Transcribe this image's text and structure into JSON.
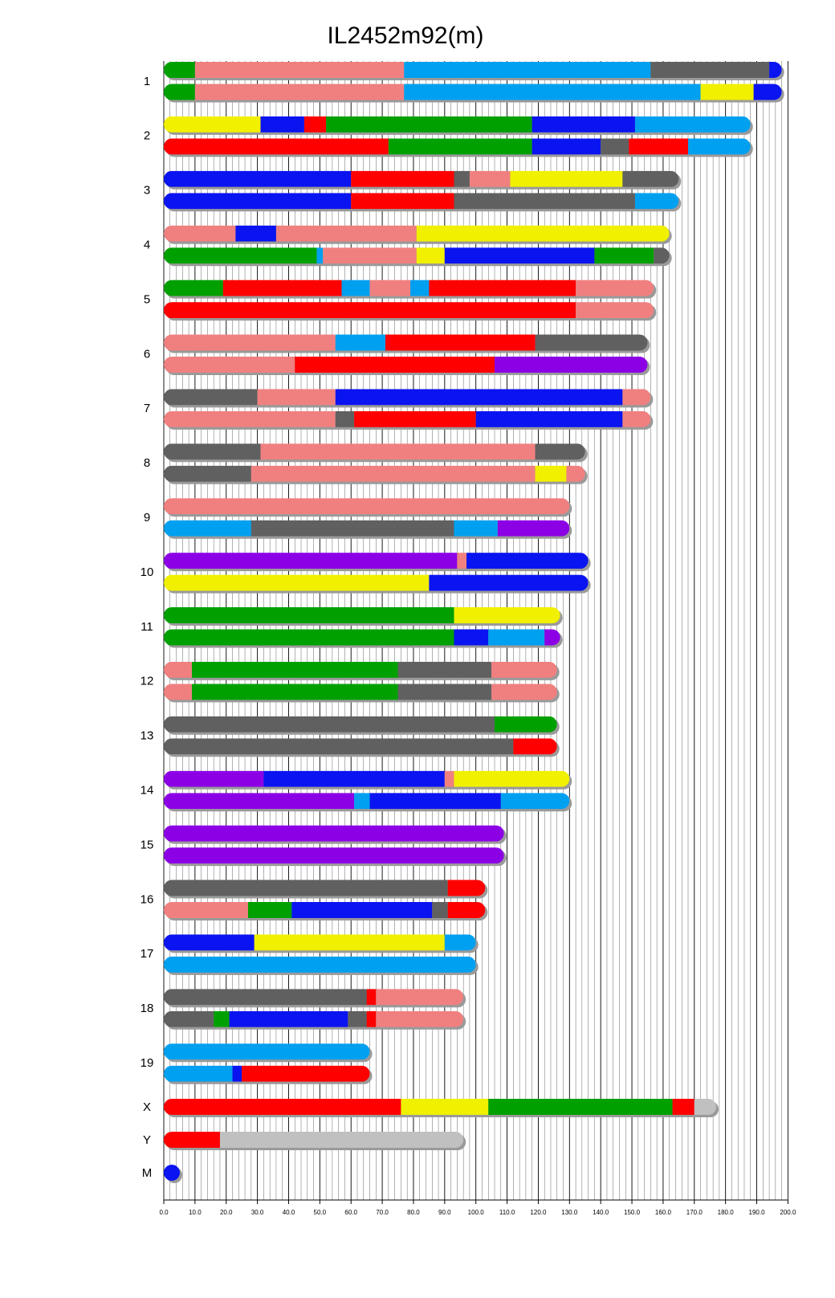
{
  "title": "IL2452m92(m)",
  "colors": {
    "red": "#ff0000",
    "green": "#00a000",
    "blue": "#0a14f0",
    "pink": "#f08080",
    "cyan": "#00a0f0",
    "gray": "#606060",
    "yellow": "#f0f000",
    "purple": "#8c00e6",
    "lightgray": "#c0c0c0"
  },
  "chart_data": {
    "type": "bar",
    "title": "IL2452m92(m)",
    "xlim": [
      0,
      200
    ],
    "x_ticks": [
      "0.0",
      "10.0",
      "20.0",
      "30.0",
      "40.0",
      "50.0",
      "60.0",
      "70.0",
      "80.0",
      "90.0",
      "100.0",
      "110.0",
      "120.0",
      "130.0",
      "140.0",
      "150.0",
      "160.0",
      "170.0",
      "180.0",
      "190.0",
      "200.0"
    ],
    "chromosomes": [
      {
        "name": "1",
        "strands": [
          [
            [
              0,
              10,
              "green"
            ],
            [
              10,
              77,
              "pink"
            ],
            [
              77,
              156,
              "cyan"
            ],
            [
              156,
              194,
              "gray"
            ],
            [
              194,
              198,
              "blue"
            ]
          ],
          [
            [
              0,
              10,
              "green"
            ],
            [
              10,
              77,
              "pink"
            ],
            [
              77,
              172,
              "cyan"
            ],
            [
              172,
              189,
              "yellow"
            ],
            [
              189,
              198,
              "blue"
            ]
          ]
        ]
      },
      {
        "name": "2",
        "strands": [
          [
            [
              0,
              31,
              "yellow"
            ],
            [
              31,
              45,
              "blue"
            ],
            [
              45,
              52,
              "red"
            ],
            [
              52,
              118,
              "green"
            ],
            [
              118,
              151,
              "blue"
            ],
            [
              151,
              188,
              "cyan"
            ]
          ],
          [
            [
              0,
              72,
              "red"
            ],
            [
              72,
              118,
              "green"
            ],
            [
              118,
              140,
              "blue"
            ],
            [
              140,
              149,
              "gray"
            ],
            [
              149,
              168,
              "red"
            ],
            [
              168,
              188,
              "cyan"
            ]
          ]
        ]
      },
      {
        "name": "3",
        "strands": [
          [
            [
              0,
              60,
              "blue"
            ],
            [
              60,
              93,
              "red"
            ],
            [
              93,
              98,
              "gray"
            ],
            [
              98,
              111,
              "pink"
            ],
            [
              111,
              147,
              "yellow"
            ],
            [
              147,
              165,
              "gray"
            ]
          ],
          [
            [
              0,
              60,
              "blue"
            ],
            [
              60,
              93,
              "red"
            ],
            [
              93,
              151,
              "gray"
            ],
            [
              151,
              165,
              "cyan"
            ]
          ]
        ]
      },
      {
        "name": "4",
        "strands": [
          [
            [
              0,
              23,
              "pink"
            ],
            [
              23,
              36,
              "blue"
            ],
            [
              36,
              81,
              "pink"
            ],
            [
              81,
              162,
              "yellow"
            ]
          ],
          [
            [
              0,
              49,
              "green"
            ],
            [
              49,
              51,
              "cyan"
            ],
            [
              51,
              81,
              "pink"
            ],
            [
              81,
              90,
              "yellow"
            ],
            [
              90,
              138,
              "blue"
            ],
            [
              138,
              157,
              "green"
            ],
            [
              157,
              162,
              "gray"
            ]
          ]
        ]
      },
      {
        "name": "5",
        "strands": [
          [
            [
              0,
              19,
              "green"
            ],
            [
              19,
              57,
              "red"
            ],
            [
              57,
              66,
              "cyan"
            ],
            [
              66,
              79,
              "pink"
            ],
            [
              79,
              85,
              "cyan"
            ],
            [
              85,
              132,
              "red"
            ],
            [
              132,
              157,
              "pink"
            ]
          ],
          [
            [
              0,
              132,
              "red"
            ],
            [
              132,
              157,
              "pink"
            ]
          ]
        ]
      },
      {
        "name": "6",
        "strands": [
          [
            [
              0,
              55,
              "pink"
            ],
            [
              55,
              71,
              "cyan"
            ],
            [
              71,
              119,
              "red"
            ],
            [
              119,
              155,
              "gray"
            ]
          ],
          [
            [
              0,
              42,
              "pink"
            ],
            [
              42,
              106,
              "red"
            ],
            [
              106,
              155,
              "purple"
            ]
          ]
        ]
      },
      {
        "name": "7",
        "strands": [
          [
            [
              0,
              30,
              "gray"
            ],
            [
              30,
              55,
              "pink"
            ],
            [
              55,
              147,
              "blue"
            ],
            [
              147,
              156,
              "pink"
            ]
          ],
          [
            [
              0,
              55,
              "pink"
            ],
            [
              55,
              61,
              "gray"
            ],
            [
              61,
              100,
              "red"
            ],
            [
              100,
              147,
              "blue"
            ],
            [
              147,
              156,
              "pink"
            ]
          ]
        ]
      },
      {
        "name": "8",
        "strands": [
          [
            [
              0,
              31,
              "gray"
            ],
            [
              31,
              119,
              "pink"
            ],
            [
              119,
              135,
              "gray"
            ]
          ],
          [
            [
              0,
              28,
              "gray"
            ],
            [
              28,
              119,
              "pink"
            ],
            [
              119,
              129,
              "yellow"
            ],
            [
              129,
              135,
              "pink"
            ]
          ]
        ]
      },
      {
        "name": "9",
        "strands": [
          [
            [
              0,
              130,
              "pink"
            ]
          ],
          [
            [
              0,
              28,
              "cyan"
            ],
            [
              28,
              93,
              "gray"
            ],
            [
              93,
              107,
              "cyan"
            ],
            [
              107,
              130,
              "purple"
            ]
          ]
        ]
      },
      {
        "name": "10",
        "strands": [
          [
            [
              0,
              94,
              "purple"
            ],
            [
              94,
              97,
              "pink"
            ],
            [
              97,
              136,
              "blue"
            ]
          ],
          [
            [
              0,
              85,
              "yellow"
            ],
            [
              85,
              136,
              "blue"
            ]
          ]
        ]
      },
      {
        "name": "11",
        "strands": [
          [
            [
              0,
              93,
              "green"
            ],
            [
              93,
              127,
              "yellow"
            ]
          ],
          [
            [
              0,
              93,
              "green"
            ],
            [
              93,
              104,
              "blue"
            ],
            [
              104,
              122,
              "cyan"
            ],
            [
              122,
              127,
              "purple"
            ]
          ]
        ]
      },
      {
        "name": "12",
        "strands": [
          [
            [
              0,
              9,
              "pink"
            ],
            [
              9,
              75,
              "green"
            ],
            [
              75,
              105,
              "gray"
            ],
            [
              105,
              126,
              "pink"
            ]
          ],
          [
            [
              0,
              9,
              "pink"
            ],
            [
              9,
              75,
              "green"
            ],
            [
              75,
              105,
              "gray"
            ],
            [
              105,
              126,
              "pink"
            ]
          ]
        ]
      },
      {
        "name": "13",
        "strands": [
          [
            [
              0,
              106,
              "gray"
            ],
            [
              106,
              126,
              "green"
            ]
          ],
          [
            [
              0,
              112,
              "gray"
            ],
            [
              112,
              126,
              "red"
            ]
          ]
        ]
      },
      {
        "name": "14",
        "strands": [
          [
            [
              0,
              32,
              "purple"
            ],
            [
              32,
              90,
              "blue"
            ],
            [
              90,
              93,
              "pink"
            ],
            [
              93,
              130,
              "yellow"
            ]
          ],
          [
            [
              0,
              61,
              "purple"
            ],
            [
              61,
              66,
              "cyan"
            ],
            [
              66,
              108,
              "blue"
            ],
            [
              108,
              130,
              "cyan"
            ]
          ]
        ]
      },
      {
        "name": "15",
        "strands": [
          [
            [
              0,
              109,
              "purple"
            ]
          ],
          [
            [
              0,
              109,
              "purple"
            ]
          ]
        ]
      },
      {
        "name": "16",
        "strands": [
          [
            [
              0,
              91,
              "gray"
            ],
            [
              91,
              103,
              "red"
            ]
          ],
          [
            [
              0,
              27,
              "pink"
            ],
            [
              27,
              41,
              "green"
            ],
            [
              41,
              86,
              "blue"
            ],
            [
              86,
              91,
              "gray"
            ],
            [
              91,
              103,
              "red"
            ]
          ]
        ]
      },
      {
        "name": "17",
        "strands": [
          [
            [
              0,
              29,
              "blue"
            ],
            [
              29,
              90,
              "yellow"
            ],
            [
              90,
              100,
              "cyan"
            ]
          ],
          [
            [
              0,
              100,
              "cyan"
            ]
          ]
        ]
      },
      {
        "name": "18",
        "strands": [
          [
            [
              0,
              65,
              "gray"
            ],
            [
              65,
              68,
              "red"
            ],
            [
              68,
              96,
              "pink"
            ]
          ],
          [
            [
              0,
              16,
              "gray"
            ],
            [
              16,
              21,
              "green"
            ],
            [
              21,
              59,
              "blue"
            ],
            [
              59,
              65,
              "gray"
            ],
            [
              65,
              68,
              "red"
            ],
            [
              68,
              96,
              "pink"
            ]
          ]
        ]
      },
      {
        "name": "19",
        "strands": [
          [
            [
              0,
              66,
              "cyan"
            ]
          ],
          [
            [
              0,
              22,
              "cyan"
            ],
            [
              22,
              25,
              "blue"
            ],
            [
              25,
              66,
              "red"
            ]
          ]
        ]
      },
      {
        "name": "X",
        "strands": [
          [
            [
              0,
              76,
              "red"
            ],
            [
              76,
              104,
              "yellow"
            ],
            [
              104,
              163,
              "green"
            ],
            [
              163,
              170,
              "red"
            ],
            [
              170,
              177,
              "lightgray"
            ]
          ]
        ]
      },
      {
        "name": "Y",
        "strands": [
          [
            [
              0,
              18,
              "red"
            ],
            [
              18,
              96,
              "lightgray"
            ]
          ]
        ]
      },
      {
        "name": "M",
        "strands": [
          [
            [
              0,
              2,
              "blue"
            ]
          ]
        ]
      }
    ]
  }
}
